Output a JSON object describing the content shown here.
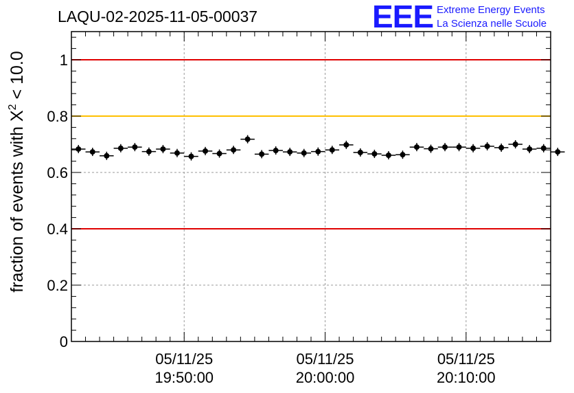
{
  "colors": {
    "limit_red": "#e00000",
    "limit_orange": "#ffc000",
    "marker": "#000000",
    "grid": "#9a9a9a",
    "logo": "#1a1aff"
  },
  "logo": {
    "big": "EEE",
    "line1": "Extreme Energy Events",
    "line2": "La Scienza nelle Scuole"
  },
  "chart_data": {
    "type": "scatter",
    "title": "LAQU-02-2025-11-05-00037",
    "ylabel_main": "fraction of events with X",
    "ylabel_sup": "2",
    "ylabel_tail": " < 10.0",
    "ylim": [
      0,
      1.1
    ],
    "xlim_min": [
      -16,
      18
    ],
    "y_ticks": [
      0,
      0.2,
      0.4,
      0.6,
      0.8,
      1
    ],
    "y_tick_labels": [
      "0",
      "0.2",
      "0.4",
      "0.6",
      "0.8",
      "1"
    ],
    "x_ticks": [
      {
        "min": -8,
        "line1": "05/11/25",
        "line2": "19:50:00"
      },
      {
        "min": 2,
        "line1": "05/11/25",
        "line2": "20:00:00"
      },
      {
        "min": 12,
        "line1": "05/11/25",
        "line2": "20:10:00"
      }
    ],
    "grid": true,
    "reference_lines": [
      {
        "y": 1.0,
        "color": "limit_red"
      },
      {
        "y": 0.8,
        "color": "limit_orange"
      },
      {
        "y": 0.4,
        "color": "limit_red"
      }
    ],
    "x_bin_width_min": 1,
    "series": [
      {
        "name": "fraction",
        "x_start_min": -15.5,
        "values": [
          0.683,
          0.673,
          0.659,
          0.686,
          0.69,
          0.674,
          0.683,
          0.669,
          0.657,
          0.676,
          0.667,
          0.68,
          0.718,
          0.665,
          0.678,
          0.673,
          0.669,
          0.674,
          0.68,
          0.698,
          0.671,
          0.666,
          0.661,
          0.663,
          0.69,
          0.684,
          0.69,
          0.69,
          0.686,
          0.693,
          0.688,
          0.7,
          0.683,
          0.686,
          0.673
        ]
      }
    ]
  }
}
